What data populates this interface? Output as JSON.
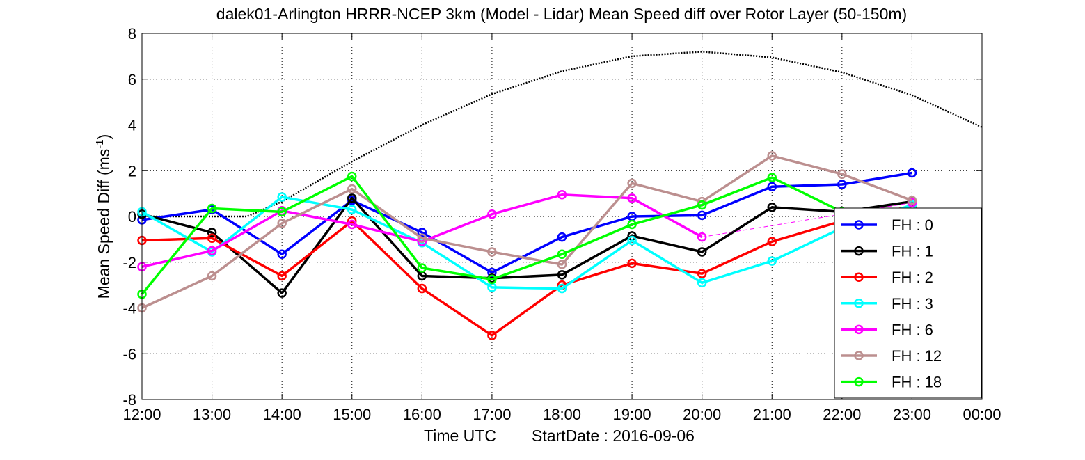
{
  "chart_data": {
    "type": "line",
    "title": "dalek01-Arlington HRRR-NCEP 3km (Model - Lidar) Mean Speed diff over Rotor Layer (50-150m)",
    "xlabel_parts": [
      "Time UTC",
      "StartDate : 2016-09-06"
    ],
    "ylabel_main": "Mean Speed Diff (ms",
    "ylabel_sup": "-1",
    "ylabel_close": ")",
    "x_ticks": [
      "12:00",
      "13:00",
      "14:00",
      "15:00",
      "16:00",
      "17:00",
      "18:00",
      "19:00",
      "20:00",
      "21:00",
      "22:00",
      "23:00",
      "00:00"
    ],
    "y_ticks": [
      "-8",
      "-6",
      "-4",
      "-2",
      "0",
      "2",
      "4",
      "6",
      "8"
    ],
    "xlim": [
      12,
      24
    ],
    "ylim": [
      -8,
      8
    ],
    "grid": true,
    "legend_position": "right",
    "series": [
      {
        "name": "FH : 0",
        "color": "#0000ff",
        "x": [
          12,
          13,
          14,
          15,
          16,
          17,
          18,
          19,
          20,
          21,
          22,
          23
        ],
        "y": [
          -0.15,
          0.3,
          -1.65,
          0.7,
          -0.7,
          -2.45,
          -0.9,
          0.0,
          0.05,
          1.3,
          1.4,
          1.9
        ]
      },
      {
        "name": "FH : 1",
        "color": "#000000",
        "x": [
          12,
          13,
          14,
          15,
          16,
          17,
          18,
          19,
          20,
          21,
          22,
          23
        ],
        "y": [
          0.1,
          -0.7,
          -3.35,
          0.8,
          -2.6,
          -2.7,
          -2.55,
          -0.85,
          -1.55,
          0.4,
          0.2,
          0.65
        ]
      },
      {
        "name": "FH : 2",
        "color": "#ff0000",
        "x": [
          12,
          13,
          14,
          15,
          16,
          17,
          18,
          19,
          20,
          21,
          22,
          23
        ],
        "y": [
          -1.05,
          -0.95,
          -2.6,
          -0.2,
          -3.15,
          -5.2,
          -3.0,
          -2.05,
          -2.5,
          -1.1,
          -0.2,
          0.45
        ]
      },
      {
        "name": "FH : 3",
        "color": "#00ffff",
        "x": [
          12,
          13,
          14,
          15,
          16,
          17,
          18,
          19,
          20,
          21,
          22,
          23
        ],
        "y": [
          0.2,
          -1.55,
          0.85,
          0.3,
          -1.15,
          -3.1,
          -3.15,
          -1.05,
          -2.9,
          -1.95,
          -0.5,
          0.5
        ]
      },
      {
        "name": "FH : 6",
        "color": "#ff00ff",
        "x": [
          12,
          13,
          14,
          15,
          16,
          17,
          18,
          19,
          20,
          23
        ],
        "y": [
          -2.2,
          -1.5,
          0.25,
          -0.35,
          -1.1,
          0.1,
          0.95,
          0.8,
          -0.9,
          0.6
        ],
        "dashed_from_index": 8
      },
      {
        "name": "FH : 12",
        "color": "#bc8f8f",
        "x": [
          12,
          13,
          14,
          15,
          16,
          17,
          18,
          19,
          20,
          21,
          22,
          23
        ],
        "y": [
          -4.0,
          -2.6,
          -0.3,
          1.2,
          -0.95,
          -1.55,
          -2.1,
          1.45,
          0.65,
          2.65,
          1.85,
          0.7
        ]
      },
      {
        "name": "FH : 18",
        "color": "#00ff00",
        "x": [
          12,
          13,
          14,
          15,
          16,
          17,
          18,
          19,
          20,
          21,
          22
        ],
        "y": [
          -3.4,
          0.35,
          0.2,
          1.75,
          -2.25,
          -2.75,
          -1.65,
          -0.35,
          0.5,
          1.7,
          0.2
        ]
      }
    ],
    "reference_curve": {
      "style": "dotted",
      "color": "#000000",
      "x": [
        12,
        13,
        13.5,
        14,
        15,
        16,
        17,
        18,
        19,
        20,
        21,
        22,
        23,
        24
      ],
      "y": [
        0,
        0,
        0,
        0.65,
        2.4,
        4.0,
        5.35,
        6.35,
        7.0,
        7.2,
        6.95,
        6.3,
        5.3,
        3.9
      ]
    }
  }
}
